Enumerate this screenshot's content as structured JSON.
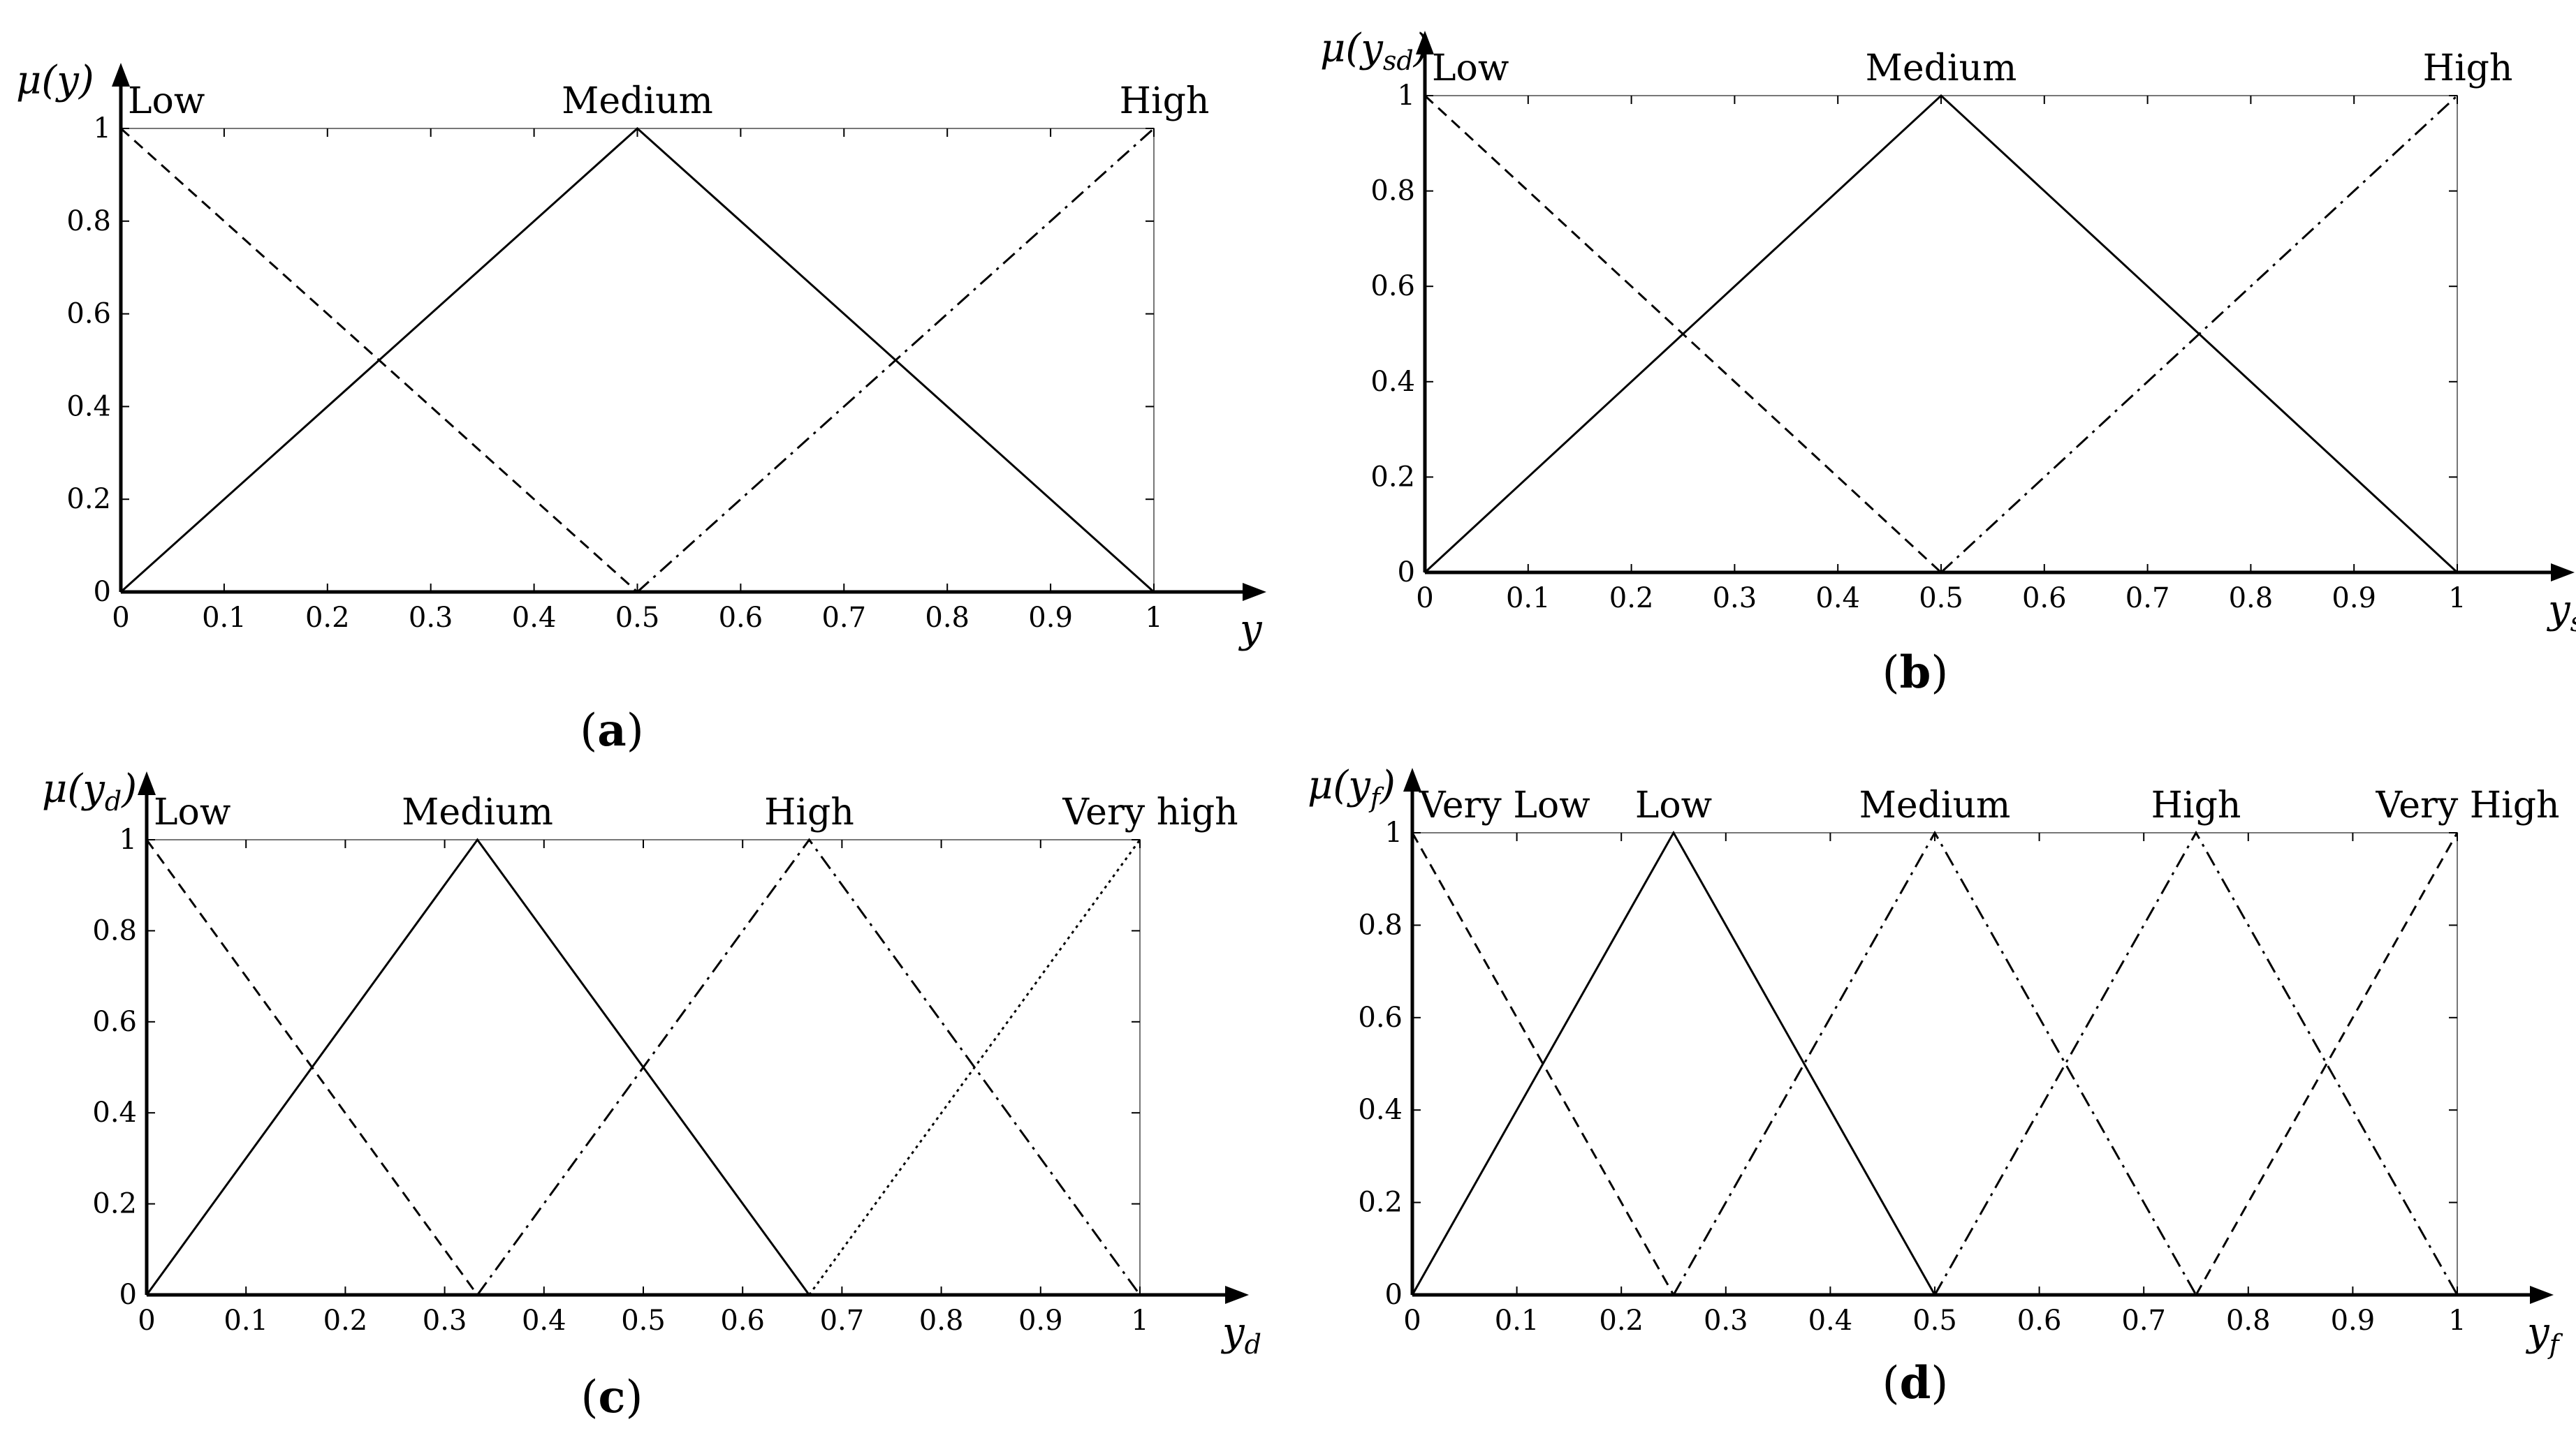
{
  "chart_data": [
    {
      "panel": "a",
      "type": "line",
      "caption_open": "(",
      "caption_letter": "a",
      "caption_close": ")",
      "xlabel_main": "y",
      "xlabel_sub": "",
      "ylabel_prefix": "μ(",
      "ylabel_var": "y",
      "ylabel_sub": "",
      "ylabel_suffix": ")",
      "xlim": [
        0,
        1
      ],
      "ylim": [
        0,
        1
      ],
      "xticks": [
        "0",
        "0.1",
        "0.2",
        "0.3",
        "0.4",
        "0.5",
        "0.6",
        "0.7",
        "0.8",
        "0.9",
        "1"
      ],
      "yticks": [
        "0",
        "0.2",
        "0.4",
        "0.6",
        "0.8",
        "1"
      ],
      "series": [
        {
          "name": "Low",
          "style": "dashed",
          "x": [
            0,
            0.5
          ],
          "y": [
            1,
            0
          ]
        },
        {
          "name": "Medium",
          "style": "solid",
          "x": [
            0,
            0.5,
            1
          ],
          "y": [
            0,
            1,
            0
          ]
        },
        {
          "name": "High",
          "style": "dashdot",
          "x": [
            0.5,
            1
          ],
          "y": [
            0,
            1
          ]
        }
      ]
    },
    {
      "panel": "b",
      "type": "line",
      "caption_open": "(",
      "caption_letter": "b",
      "caption_close": ")",
      "xlabel_main": "y",
      "xlabel_sub": "sd",
      "ylabel_prefix": "μ(",
      "ylabel_var": "y",
      "ylabel_sub": "sd",
      "ylabel_suffix": ")",
      "xlim": [
        0,
        1
      ],
      "ylim": [
        0,
        1
      ],
      "xticks": [
        "0",
        "0.1",
        "0.2",
        "0.3",
        "0.4",
        "0.5",
        "0.6",
        "0.7",
        "0.8",
        "0.9",
        "1"
      ],
      "yticks": [
        "0",
        "0.2",
        "0.4",
        "0.6",
        "0.8",
        "1"
      ],
      "series": [
        {
          "name": "Low",
          "style": "dashed",
          "x": [
            0,
            0.5
          ],
          "y": [
            1,
            0
          ]
        },
        {
          "name": "Medium",
          "style": "solid",
          "x": [
            0,
            0.5,
            1
          ],
          "y": [
            0,
            1,
            0
          ]
        },
        {
          "name": "High",
          "style": "dashdot",
          "x": [
            0.5,
            1
          ],
          "y": [
            0,
            1
          ]
        }
      ]
    },
    {
      "panel": "c",
      "type": "line",
      "caption_open": "(",
      "caption_letter": "c",
      "caption_close": ")",
      "xlabel_main": "y",
      "xlabel_sub": "d",
      "ylabel_prefix": "μ(",
      "ylabel_var": "y",
      "ylabel_sub": "d",
      "ylabel_suffix": ")",
      "xlim": [
        0,
        1
      ],
      "ylim": [
        0,
        1
      ],
      "xticks": [
        "0",
        "0.1",
        "0.2",
        "0.3",
        "0.4",
        "0.5",
        "0.6",
        "0.7",
        "0.8",
        "0.9",
        "1"
      ],
      "yticks": [
        "0",
        "0.2",
        "0.4",
        "0.6",
        "0.8",
        "1"
      ],
      "series": [
        {
          "name": "Low",
          "style": "dashed",
          "x": [
            0,
            0.333
          ],
          "y": [
            1,
            0
          ]
        },
        {
          "name": "Medium",
          "style": "solid",
          "x": [
            0,
            0.333,
            0.667
          ],
          "y": [
            0,
            1,
            0
          ]
        },
        {
          "name": "High",
          "style": "dashdot",
          "x": [
            0.333,
            0.667,
            1
          ],
          "y": [
            0,
            1,
            0
          ]
        },
        {
          "name": "Very high",
          "style": "dotted",
          "x": [
            0.667,
            1
          ],
          "y": [
            0,
            1
          ]
        }
      ]
    },
    {
      "panel": "d",
      "type": "line",
      "caption_open": "(",
      "caption_letter": "d",
      "caption_close": ")",
      "xlabel_main": "y",
      "xlabel_sub": "f",
      "ylabel_prefix": "μ(",
      "ylabel_var": "y",
      "ylabel_sub": "f",
      "ylabel_suffix": ")",
      "xlim": [
        0,
        1
      ],
      "ylim": [
        0,
        1
      ],
      "xticks": [
        "0",
        "0.1",
        "0.2",
        "0.3",
        "0.4",
        "0.5",
        "0.6",
        "0.7",
        "0.8",
        "0.9",
        "1"
      ],
      "yticks": [
        "0",
        "0.2",
        "0.4",
        "0.6",
        "0.8",
        "1"
      ],
      "series": [
        {
          "name": "Very Low",
          "style": "dashed",
          "x": [
            0,
            0.25
          ],
          "y": [
            1,
            0
          ]
        },
        {
          "name": "Low",
          "style": "solid",
          "x": [
            0,
            0.25,
            0.5
          ],
          "y": [
            0,
            1,
            0
          ]
        },
        {
          "name": "Medium",
          "style": "dashdot",
          "x": [
            0.25,
            0.5,
            0.75
          ],
          "y": [
            0,
            1,
            0
          ]
        },
        {
          "name": "High",
          "style": "dashdot",
          "x": [
            0.5,
            0.75,
            1
          ],
          "y": [
            0,
            1,
            0
          ]
        },
        {
          "name": "Very High",
          "style": "dashed",
          "x": [
            0.75,
            1
          ],
          "y": [
            0,
            1
          ]
        }
      ]
    }
  ]
}
